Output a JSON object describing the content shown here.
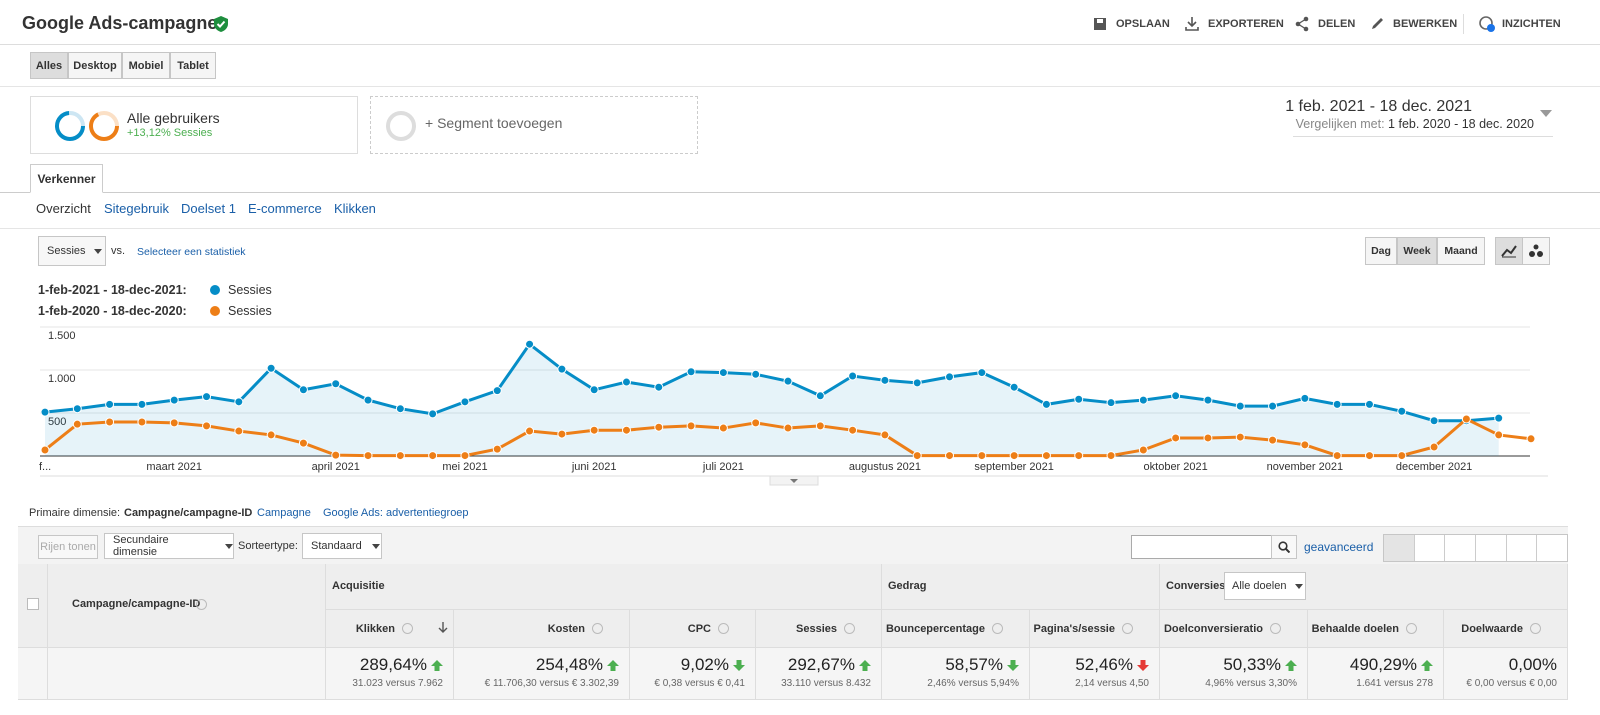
{
  "header": {
    "title": "Google Ads-campagnes",
    "actions": [
      "OPSLAAN",
      "EXPORTEREN",
      "DELEN",
      "BEWERKEN",
      "INZICHTEN"
    ]
  },
  "device_tabs": {
    "items": [
      "Alles",
      "Desktop",
      "Mobiel",
      "Tablet"
    ],
    "active": 0
  },
  "segments": {
    "name": "Alle gebruikers",
    "change": "+13,12% Sessies",
    "add": "+ Segment toevoegen"
  },
  "date_range": {
    "current": "1 feb. 2021 - 18 dec. 2021",
    "compare_label": "Vergelijken met:",
    "compare": "1 feb. 2020 - 18 dec. 2020"
  },
  "explorer_tab": "Verkenner",
  "subtabs": {
    "items": [
      "Overzicht",
      "Sitegebruik",
      "Doelset 1",
      "E-commerce",
      "Klikken"
    ],
    "active": 0
  },
  "chart_controls": {
    "metric": "Sessies",
    "vs": "vs.",
    "select": "Selecteer een statistiek",
    "granularity": [
      "Dag",
      "Week",
      "Maand"
    ],
    "active_granularity": 1
  },
  "chart_data": {
    "type": "line",
    "categories": [
      "f...",
      null,
      null,
      null,
      "maart 2021",
      null,
      null,
      null,
      null,
      "april 2021",
      null,
      null,
      null,
      "mei 2021",
      null,
      null,
      null,
      "juni 2021",
      null,
      null,
      null,
      "juli 2021",
      null,
      null,
      null,
      null,
      "augustus 2021",
      null,
      null,
      null,
      "september 2021",
      null,
      null,
      null,
      null,
      "oktober 2021",
      null,
      null,
      null,
      "november 2021",
      null,
      null,
      null,
      "december 2021",
      null,
      null,
      null
    ],
    "series": [
      {
        "name": "Sessies",
        "period": "1-feb-2021 - 18-dec-2021:",
        "color": "#058dc7",
        "area": true,
        "values": [
          510,
          550,
          600,
          600,
          650,
          690,
          630,
          1020,
          770,
          840,
          650,
          550,
          490,
          630,
          760,
          1300,
          1010,
          770,
          860,
          800,
          980,
          970,
          950,
          870,
          700,
          930,
          880,
          850,
          920,
          970,
          800,
          600,
          660,
          620,
          650,
          700,
          650,
          580,
          580,
          670,
          600,
          600,
          520,
          410,
          410,
          440,
          null
        ]
      },
      {
        "name": "Sessies",
        "period": "1-feb-2020 - 18-dec-2020:",
        "color": "#ed7e17",
        "area": false,
        "values": [
          70,
          370,
          395,
          395,
          385,
          350,
          290,
          245,
          150,
          10,
          5,
          5,
          5,
          5,
          80,
          290,
          255,
          300,
          300,
          335,
          350,
          325,
          385,
          325,
          350,
          300,
          245,
          5,
          5,
          5,
          5,
          5,
          5,
          5,
          70,
          210,
          210,
          220,
          185,
          130,
          5,
          5,
          5,
          105,
          430,
          245,
          200
        ]
      }
    ],
    "ylim": [
      0,
      1500
    ],
    "yticks": [
      500,
      {
        "value": 1000,
        "label": "1.000"
      },
      {
        "value": 1500,
        "label": "1.500"
      }
    ],
    "grid": true
  },
  "dimensions": {
    "label": "Primaire dimensie:",
    "items": [
      "Campagne/campagne-ID",
      "Campagne",
      "Google Ads: advertentiegroep"
    ],
    "active": 0
  },
  "table_controls": {
    "rows": "Rijen tonen",
    "secondary": "Secundaire dimensie",
    "sort_label": "Sorteertype:",
    "sort": "Standaard",
    "advanced": "geavanceerd"
  },
  "table": {
    "dimension_header": "Campagne/campagne-ID",
    "groups": [
      {
        "name": "Acquisitie",
        "columns": [
          {
            "name": "Klikken",
            "value": "289,64%",
            "compare": "31.023 versus 7.962",
            "trend": "up",
            "color": "#4caf50"
          },
          {
            "name": "Kosten",
            "value": "254,48%",
            "compare": "€ 11.706,30 versus € 3.302,39",
            "trend": "up",
            "color": "#4caf50"
          },
          {
            "name": "CPC",
            "value": "9,02%",
            "compare": "€ 0,38 versus € 0,41",
            "trend": "down",
            "color": "#4caf50"
          },
          {
            "name": "Sessies",
            "value": "292,67%",
            "compare": "33.110 versus 8.432",
            "trend": "up",
            "color": "#4caf50"
          }
        ]
      },
      {
        "name": "Gedrag",
        "columns": [
          {
            "name": "Bouncepercentage",
            "value": "58,57%",
            "compare": "2,46% versus 5,94%",
            "trend": "down",
            "color": "#4caf50"
          },
          {
            "name": "Pagina's/sessie",
            "value": "52,46%",
            "compare": "2,14 versus 4,50",
            "trend": "down",
            "color": "#e53935"
          }
        ]
      },
      {
        "name": "Conversies",
        "selector": "Alle doelen",
        "columns": [
          {
            "name": "Doelconversieratio",
            "value": "50,33%",
            "compare": "4,96% versus 3,30%",
            "trend": "up",
            "color": "#4caf50"
          },
          {
            "name": "Behaalde doelen",
            "value": "490,29%",
            "compare": "1.641 versus 278",
            "trend": "up",
            "color": "#4caf50"
          },
          {
            "name": "Doelwaarde",
            "value": "0,00%",
            "compare": "€ 0,00 versus € 0,00"
          }
        ]
      }
    ]
  }
}
